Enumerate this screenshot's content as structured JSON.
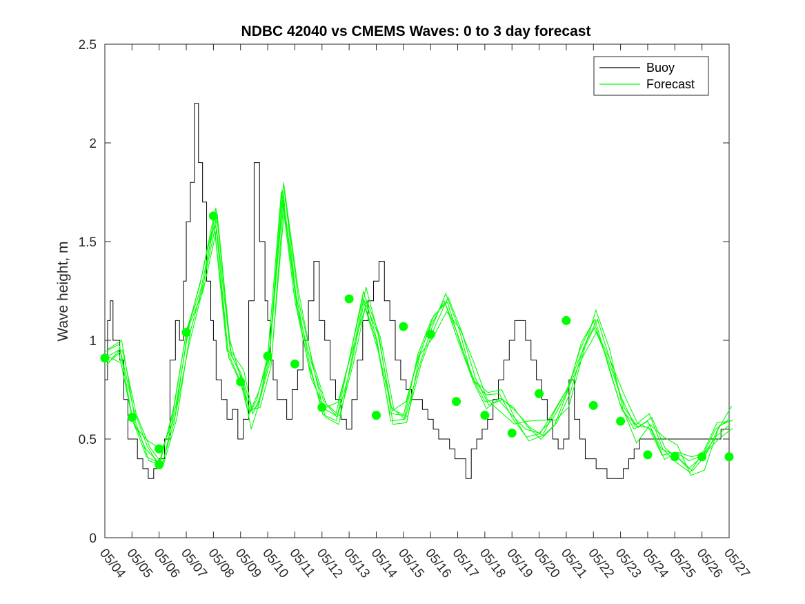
{
  "chart_data": {
    "type": "line",
    "title": "NDBC 42040 vs CMEMS Waves: 0 to 3 day forecast",
    "xlabel": "",
    "ylabel": "Wave height, m",
    "ylim": [
      0,
      2.5
    ],
    "xlim": [
      0,
      23
    ],
    "y_ticks": [
      "0",
      "0.5",
      "1",
      "1.5",
      "2",
      "2.5"
    ],
    "y_tick_values": [
      0,
      0.5,
      1,
      1.5,
      2,
      2.5
    ],
    "x_tick_labels": [
      "05/04",
      "05/05",
      "05/06",
      "05/07",
      "05/08",
      "05/09",
      "05/10",
      "05/11",
      "05/12",
      "05/13",
      "05/14",
      "05/15",
      "05/16",
      "05/17",
      "05/18",
      "05/19",
      "05/20",
      "05/21",
      "05/22",
      "05/23",
      "05/24",
      "05/25",
      "05/26",
      "05/27"
    ],
    "grid": false,
    "legend_position": "top-right",
    "colors": {
      "buoy": "#000000",
      "forecast": "#00ff00"
    },
    "series": [
      {
        "name": "Buoy",
        "style": "step",
        "x": [
          0,
          0.1,
          0.2,
          0.3,
          0.4,
          0.55,
          0.7,
          0.85,
          1.0,
          1.2,
          1.4,
          1.6,
          1.8,
          2.0,
          2.2,
          2.4,
          2.6,
          2.75,
          2.9,
          3.0,
          3.15,
          3.3,
          3.45,
          3.6,
          3.75,
          3.9,
          4.0,
          4.1,
          4.3,
          4.5,
          4.7,
          4.9,
          5.1,
          5.3,
          5.5,
          5.7,
          5.9,
          6.0,
          6.1,
          6.2,
          6.35,
          6.5,
          6.7,
          6.9,
          7.1,
          7.3,
          7.5,
          7.7,
          7.9,
          8.1,
          8.3,
          8.5,
          8.7,
          8.9,
          9.1,
          9.3,
          9.5,
          9.7,
          9.9,
          10.1,
          10.3,
          10.5,
          10.7,
          10.9,
          11.1,
          11.3,
          11.5,
          11.7,
          11.9,
          12.1,
          12.3,
          12.5,
          12.7,
          12.9,
          13.1,
          13.3,
          13.5,
          13.7,
          13.9,
          14.1,
          14.3,
          14.5,
          14.7,
          14.9,
          15.1,
          15.3,
          15.5,
          15.7,
          15.9,
          16.1,
          16.3,
          16.5,
          16.7,
          16.9,
          17.1,
          17.3,
          17.5,
          17.7,
          17.9,
          18.1,
          18.3,
          18.5,
          18.7,
          18.9,
          19.1,
          19.3,
          19.5,
          19.7,
          19.9,
          20.1,
          20.3,
          20.5,
          20.7,
          20.9,
          21.1,
          21.3,
          21.5,
          21.7,
          21.9,
          22.1,
          22.3,
          22.5,
          22.7,
          23.0
        ],
        "values": [
          0.8,
          1.1,
          1.2,
          1.0,
          1.0,
          0.9,
          0.7,
          0.5,
          0.5,
          0.4,
          0.35,
          0.3,
          0.35,
          0.4,
          0.5,
          0.9,
          1.1,
          1.0,
          1.3,
          1.6,
          1.8,
          2.2,
          1.9,
          1.7,
          1.3,
          1.1,
          1.0,
          0.8,
          0.7,
          0.6,
          0.65,
          0.5,
          0.6,
          1.2,
          1.9,
          1.5,
          1.2,
          1.1,
          0.9,
          0.8,
          0.7,
          0.7,
          0.6,
          0.75,
          0.85,
          1.0,
          1.2,
          1.4,
          1.1,
          1.0,
          0.8,
          0.7,
          0.6,
          0.55,
          0.7,
          0.9,
          1.1,
          1.2,
          1.3,
          1.4,
          1.2,
          1.1,
          0.9,
          0.8,
          0.75,
          0.7,
          0.7,
          0.65,
          0.6,
          0.55,
          0.5,
          0.5,
          0.45,
          0.4,
          0.4,
          0.3,
          0.45,
          0.5,
          0.55,
          0.6,
          0.7,
          0.8,
          0.9,
          1.0,
          1.1,
          1.1,
          1.0,
          0.9,
          0.8,
          0.7,
          0.6,
          0.5,
          0.45,
          0.5,
          0.8,
          0.6,
          0.5,
          0.4,
          0.4,
          0.35,
          0.35,
          0.3,
          0.3,
          0.3,
          0.35,
          0.4,
          0.45,
          0.5,
          0.5,
          0.5,
          0.5,
          0.5,
          0.5,
          0.5,
          0.5,
          0.5,
          0.5,
          0.5,
          0.5,
          0.5,
          0.5,
          0.5,
          0.55,
          0.55
        ]
      },
      {
        "name": "Forecast",
        "style": "line",
        "x": [
          0,
          0.5,
          1.0,
          1.5,
          2.0,
          2.5,
          3.0,
          3.5,
          4.0,
          4.5,
          5.0,
          5.3,
          5.6,
          6.0,
          6.5,
          7.0,
          7.5,
          8.0,
          8.5,
          9.0,
          9.5,
          10.0,
          10.5,
          11.0,
          11.5,
          12.0,
          12.5,
          13.0,
          13.5,
          14.0,
          14.5,
          15.0,
          15.5,
          16.0,
          16.5,
          17.0,
          17.5,
          18.0,
          18.5,
          19.0,
          19.5,
          20.0,
          20.5,
          21.0,
          21.5,
          22.0,
          22.5,
          23.0
        ],
        "values": [
          0.91,
          0.95,
          0.61,
          0.45,
          0.38,
          0.62,
          1.04,
          1.28,
          1.62,
          0.95,
          0.79,
          0.62,
          0.7,
          0.92,
          1.75,
          1.2,
          0.88,
          0.66,
          0.62,
          0.9,
          1.21,
          1.0,
          0.63,
          0.62,
          0.9,
          1.07,
          1.2,
          1.03,
          0.82,
          0.69,
          0.7,
          0.62,
          0.55,
          0.53,
          0.6,
          0.73,
          0.95,
          1.1,
          0.9,
          0.67,
          0.55,
          0.59,
          0.45,
          0.42,
          0.35,
          0.41,
          0.55,
          0.6
        ]
      }
    ],
    "forecast_dots": {
      "x": [
        0,
        1,
        2,
        2,
        3,
        4,
        5,
        6,
        7,
        8,
        9,
        10,
        10,
        11,
        12,
        12.95,
        14,
        15,
        16,
        17,
        18,
        19,
        20,
        21,
        22,
        23
      ],
      "values": [
        0.91,
        0.61,
        0.45,
        0.37,
        1.04,
        1.63,
        0.79,
        0.92,
        0.88,
        0.66,
        1.21,
        0.62,
        0.62,
        1.07,
        1.03,
        0.69,
        0.62,
        0.53,
        0.73,
        1.1,
        0.67,
        0.59,
        0.42,
        0.41,
        0.41,
        0.41
      ]
    }
  }
}
